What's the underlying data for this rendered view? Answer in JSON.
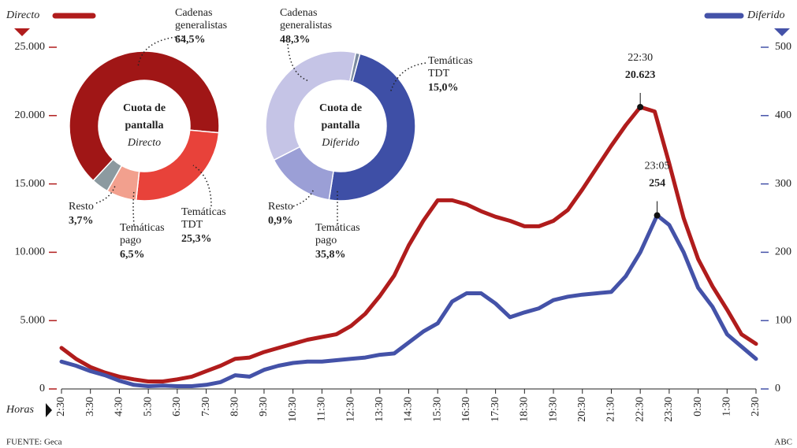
{
  "chart_data": [
    {
      "type": "line",
      "x_label": "Horas",
      "source": "FUENTE: Geca",
      "credit": "ABC",
      "xlim": [
        0,
        24
      ],
      "xticks": [
        {
          "value": 0,
          "label": "2:30"
        },
        {
          "value": 1,
          "label": "3:30"
        },
        {
          "value": 2,
          "label": "4:30"
        },
        {
          "value": 3,
          "label": "5:30"
        },
        {
          "value": 4,
          "label": "6:30"
        },
        {
          "value": 5,
          "label": "7:30"
        },
        {
          "value": 6,
          "label": "8:30"
        },
        {
          "value": 7,
          "label": "9:30"
        },
        {
          "value": 8,
          "label": "10:30"
        },
        {
          "value": 9,
          "label": "11:30"
        },
        {
          "value": 10,
          "label": "12:30"
        },
        {
          "value": 11,
          "label": "13:30"
        },
        {
          "value": 12,
          "label": "14:30"
        },
        {
          "value": 13,
          "label": "15:30"
        },
        {
          "value": 14,
          "label": "16:30"
        },
        {
          "value": 15,
          "label": "17:30"
        },
        {
          "value": 16,
          "label": "18:30"
        },
        {
          "value": 17,
          "label": "19:30"
        },
        {
          "value": 18,
          "label": "20:30"
        },
        {
          "value": 19,
          "label": "21:30"
        },
        {
          "value": 20,
          "label": "22:30"
        },
        {
          "value": 21,
          "label": "23:30"
        },
        {
          "value": 22,
          "label": "0:30"
        },
        {
          "value": 23,
          "label": "1:30"
        },
        {
          "value": 24,
          "label": "2:30"
        }
      ],
      "ylim": [
        0,
        25000
      ],
      "yticks": [
        0,
        {
          "value": 5000,
          "label": "5.000"
        },
        {
          "value": 10000,
          "label": "10.000"
        },
        {
          "value": 15000,
          "label": "15.000"
        },
        {
          "value": 20000,
          "label": "20.000"
        },
        {
          "value": 25000,
          "label": "25.000"
        }
      ],
      "y2lim": [
        0,
        500
      ],
      "y2ticks": [
        0,
        100,
        200,
        300,
        400,
        500
      ],
      "series": [
        {
          "name": "Directo",
          "color": "#b01c1c",
          "axis": "y",
          "x": [
            0,
            0.5,
            1,
            1.5,
            2,
            2.5,
            3,
            3.5,
            4,
            4.5,
            5,
            5.5,
            6,
            6.5,
            7,
            7.5,
            8,
            8.5,
            9,
            9.5,
            10,
            10.5,
            11,
            11.5,
            12,
            12.5,
            13,
            13.5,
            14,
            14.5,
            15,
            15.5,
            16,
            16.5,
            17,
            17.5,
            18,
            18.5,
            19,
            19.5,
            20,
            20.5,
            21,
            21.5,
            22,
            22.5,
            23,
            23.5,
            24
          ],
          "values": [
            3000,
            2200,
            1600,
            1200,
            900,
            700,
            550,
            550,
            700,
            900,
            1300,
            1700,
            2200,
            2300,
            2700,
            3000,
            3300,
            3600,
            3800,
            4000,
            4600,
            5500,
            6800,
            8300,
            10500,
            12300,
            13800,
            13800,
            13500,
            13000,
            12600,
            12300,
            11900,
            11900,
            12300,
            13100,
            14600,
            16200,
            17800,
            19300,
            20623,
            20300,
            16500,
            12500,
            9500,
            7500,
            5800,
            4000,
            3300
          ]
        },
        {
          "name": "Diferido",
          "color": "#4452a8",
          "axis": "y2",
          "x": [
            0,
            0.5,
            1,
            1.5,
            2,
            2.5,
            3,
            3.5,
            4,
            4.5,
            5,
            5.5,
            6,
            6.5,
            7,
            7.5,
            8,
            8.5,
            9,
            9.5,
            10,
            10.5,
            11,
            11.5,
            12,
            12.5,
            13,
            13.5,
            14,
            14.5,
            15,
            15.5,
            16,
            16.5,
            17,
            17.5,
            18,
            18.5,
            19,
            19.5,
            20,
            20.583,
            21,
            21.5,
            22,
            22.5,
            23,
            23.5,
            24
          ],
          "values": [
            40,
            34,
            26,
            20,
            12,
            6,
            4,
            5,
            4,
            4,
            6,
            10,
            20,
            18,
            28,
            34,
            38,
            40,
            40,
            42,
            44,
            46,
            50,
            52,
            68,
            84,
            96,
            128,
            140,
            140,
            125,
            105,
            112,
            118,
            130,
            135,
            138,
            140,
            142,
            165,
            200,
            254,
            240,
            200,
            148,
            120,
            80,
            62,
            44
          ]
        }
      ],
      "annotations": [
        {
          "series": 0,
          "index": 40,
          "time": "22:30",
          "label": "20.623"
        },
        {
          "series": 1,
          "index": 41,
          "time": "23:05",
          "label": "254"
        }
      ]
    },
    {
      "type": "pie",
      "title": "Cuota de pantalla",
      "subtitle": "Directo",
      "categories": [
        "Cadenas generalistas",
        "Temáticas TDT",
        "Temáticas pago",
        "Resto"
      ],
      "values": [
        64.5,
        25.3,
        6.5,
        3.7
      ],
      "value_labels": [
        "64,5%",
        "25,3%",
        "6,5%",
        "3,7%"
      ],
      "colors": [
        "#a01616",
        "#e8423a",
        "#f2a08e",
        "#8c9aa0"
      ]
    },
    {
      "type": "pie",
      "title": "Cuota de pantalla",
      "subtitle": "Diferido",
      "categories": [
        "Cadenas generalistas",
        "Temáticas TDT",
        "Temáticas pago",
        "Resto"
      ],
      "values": [
        48.3,
        15.0,
        35.8,
        0.9
      ],
      "value_labels": [
        "48,3%",
        "15,0%",
        "35,8%",
        "0,9%"
      ],
      "colors": [
        "#3e4fa6",
        "#9b9fd6",
        "#c5c4e6",
        "#7a8aa0"
      ]
    }
  ]
}
